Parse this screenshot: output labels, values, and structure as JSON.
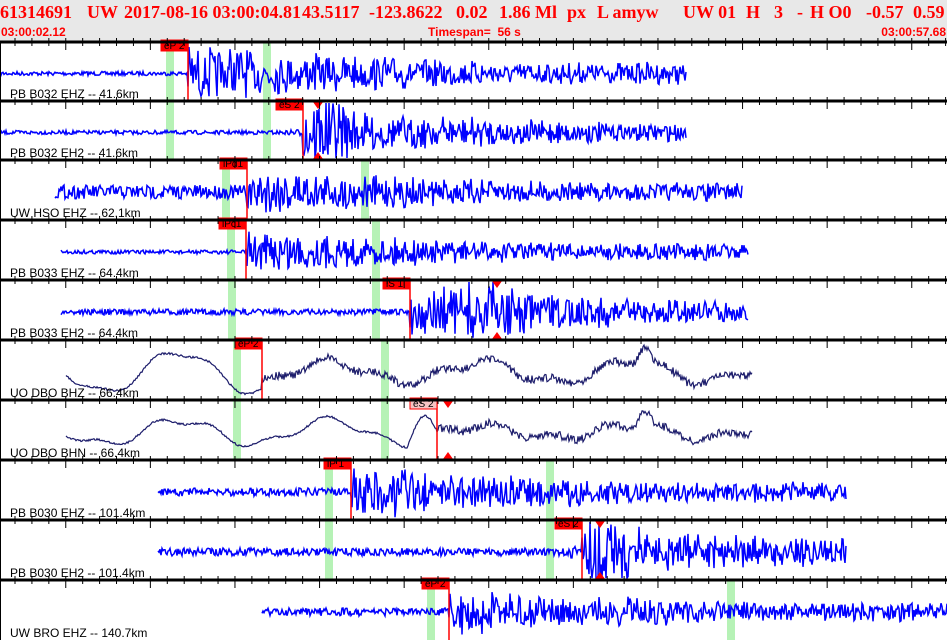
{
  "header": {
    "event_id": "61314691",
    "network": "UW",
    "datetime": "2017-08-16 03:00:04.81",
    "lat": "43.5117",
    "lon": "-123.8622",
    "depth": "0.02",
    "magnitude": "1.86 Ml",
    "type": "px",
    "source": "L amyw",
    "auth": "UW 01",
    "f1": "H",
    "f2": "3",
    "f3": "-",
    "f4": "H O0",
    "v1": "-0.57",
    "v2": "0.59"
  },
  "timebar": {
    "start": "03:00:02.12",
    "timespan": "Timespan=  56 s",
    "end": "03:00:57.68"
  },
  "colors": {
    "trace": "#0000ff",
    "trace_broadband": "#1c1c6b",
    "pick": "#ff0000",
    "predicted_window": "#b6f2b6",
    "header_bg": "#e8e8e8",
    "header_text": "#ff0000"
  },
  "traces": [
    {
      "label": "PB B032 EHZ -- 41.6km",
      "pick": "eP 2"
    },
    {
      "label": "PB B032 EH2 -- 41.6km",
      "pick": "eS 2"
    },
    {
      "label": "UW HSO EHZ -- 62.1km",
      "pick": "iPd1"
    },
    {
      "label": "PB B033 EHZ -- 64.4km",
      "pick": "iPc1"
    },
    {
      "label": "PB B033 EH2 -- 64.4km",
      "pick": "iS 1"
    },
    {
      "label": "UO DBO BHZ -- 66.4km",
      "pick": "eP 2"
    },
    {
      "label": "UO DBO BHN -- 66.4km",
      "pick": "eS 2"
    },
    {
      "label": "PB B030 EHZ -- 101.4km",
      "pick": "iP 1"
    },
    {
      "label": "PB B030 EH2 -- 101.4km",
      "pick": "eS 2"
    },
    {
      "label": "UW BRO EHZ -- 140.7km",
      "pick": "eP 2"
    }
  ]
}
